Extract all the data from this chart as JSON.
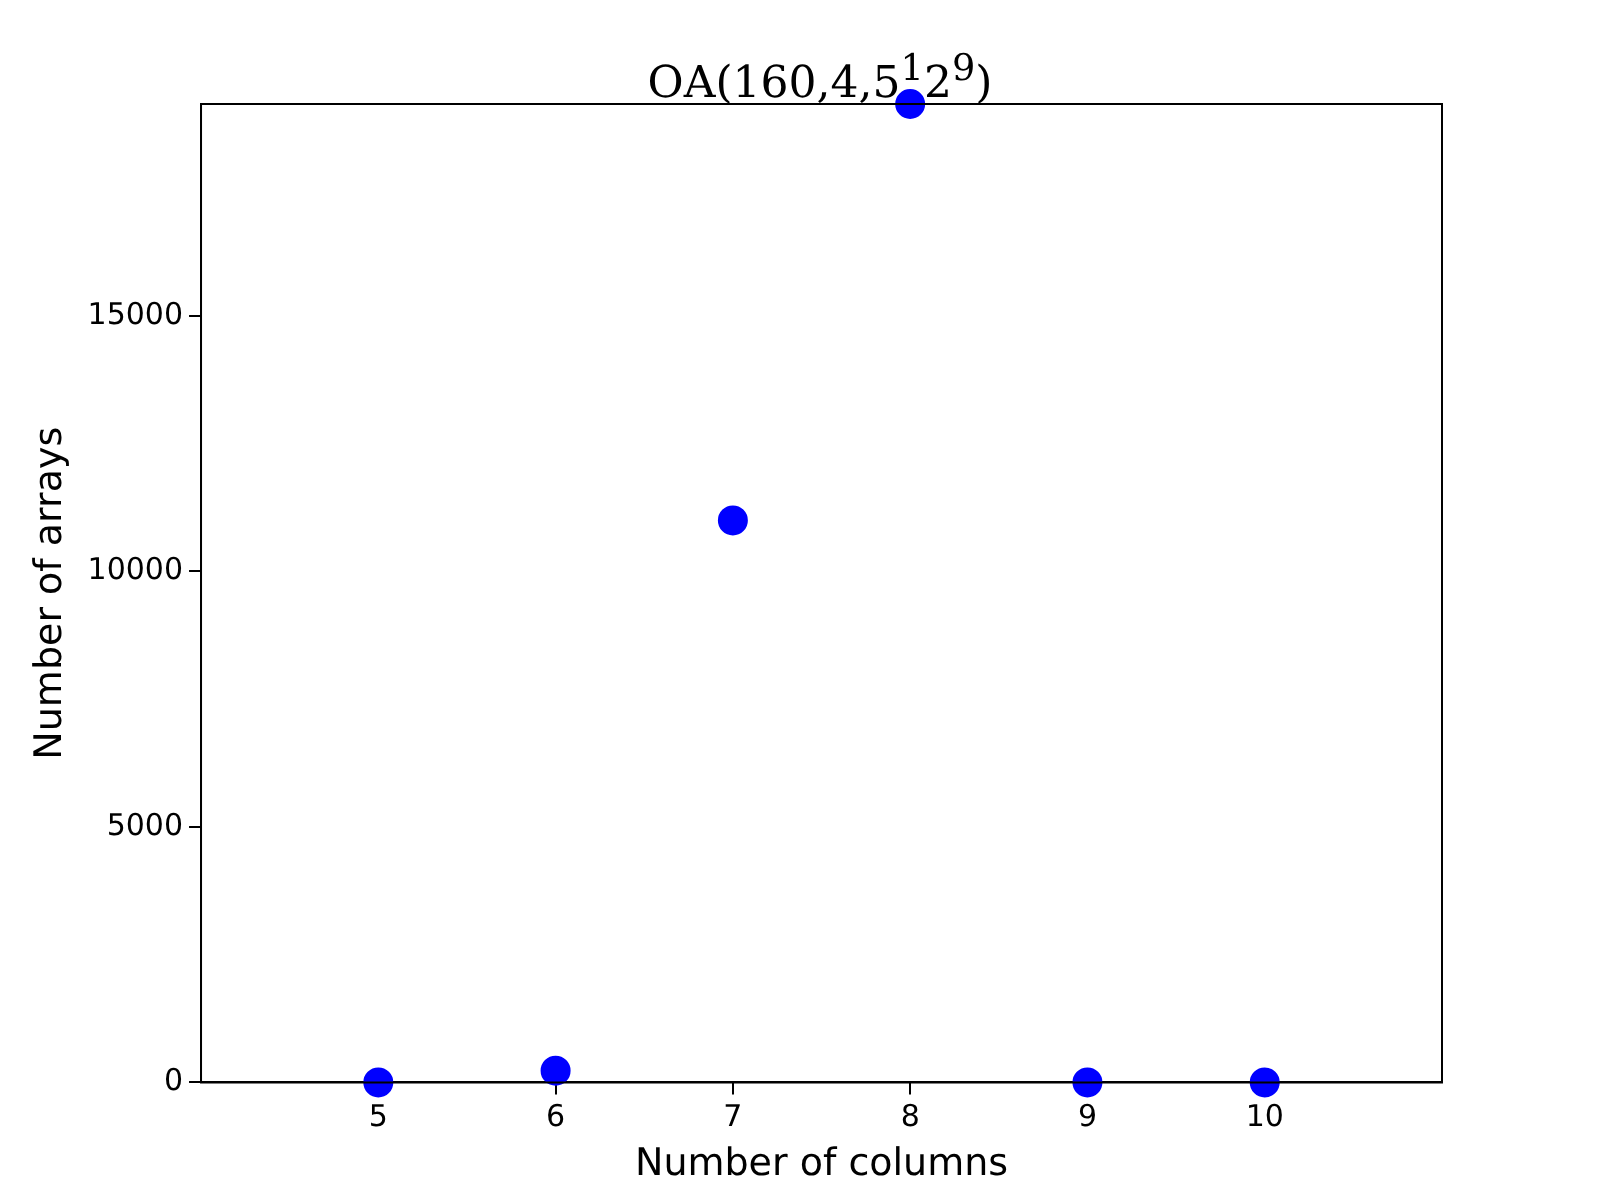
{
  "chart_data": {
    "type": "scatter",
    "title": "OA(160,4,5$^{1}$2$^{9}$)",
    "xlabel": "Number of columns",
    "ylabel": "Number of arrays",
    "x": [
      5,
      6,
      7,
      8,
      9,
      10
    ],
    "values": [
      0,
      230,
      11000,
      19150,
      0,
      0
    ],
    "color": "#0000ff",
    "marker": "circle",
    "xlim": [
      4,
      11
    ],
    "xticks": [
      5,
      6,
      7,
      8,
      9,
      10
    ],
    "ylim": [
      0,
      19150
    ],
    "yticks": [
      0,
      5000,
      10000,
      15000
    ],
    "grid": false,
    "legend": false
  }
}
